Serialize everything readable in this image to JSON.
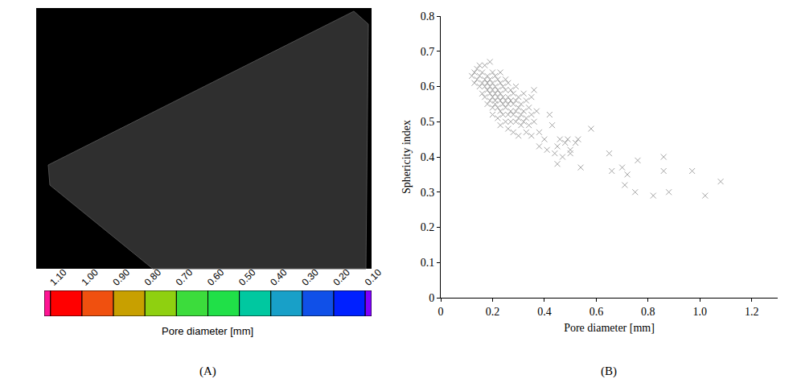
{
  "chart_data": [
    {
      "type": "colorbar",
      "panel_label": "(A)",
      "xlabel": "Pore diameter [mm]",
      "bins": [
        1.12,
        1.1,
        1.0,
        0.9,
        0.8,
        0.7,
        0.6,
        0.5,
        0.4,
        0.3,
        0.2,
        0.1,
        0.08
      ],
      "colors": [
        "#ff1493",
        "#ff0000",
        "#f0500f",
        "#c8a000",
        "#8fd010",
        "#3cdc3c",
        "#20e048",
        "#00c8a0",
        "#18a0c8",
        "#1050e8",
        "#0020ff",
        "#8000ff"
      ],
      "xlim": [
        1.12,
        0.08
      ],
      "xticks": [
        {
          "value": 1.1,
          "label": "1.10"
        },
        {
          "value": 1.0,
          "label": "1.00"
        },
        {
          "value": 0.9,
          "label": "0.90"
        },
        {
          "value": 0.8,
          "label": "0.80"
        },
        {
          "value": 0.7,
          "label": "0.70"
        },
        {
          "value": 0.6,
          "label": "0.60"
        },
        {
          "value": 0.5,
          "label": "0.50"
        },
        {
          "value": 0.4,
          "label": "0.40"
        },
        {
          "value": 0.3,
          "label": "0.30"
        },
        {
          "value": 0.2,
          "label": "0.20"
        },
        {
          "value": 0.1,
          "label": "0.10"
        }
      ]
    },
    {
      "type": "scatter",
      "panel_label": "(B)",
      "xlabel": "Pore diameter [mm]",
      "ylabel": "Sphericity index",
      "color": "#a6a6a6",
      "marker": "x",
      "grid": false,
      "xlim": [
        0,
        1.3
      ],
      "xticks": [
        0,
        0.2,
        0.4,
        0.6,
        0.8,
        {
          "value": 1,
          "label": "1.0"
        },
        1.2
      ],
      "ylim": [
        0,
        0.8
      ],
      "yticks": [
        0,
        0.1,
        0.2,
        0.3,
        0.4,
        0.5,
        0.6,
        0.7,
        0.8
      ],
      "x": [
        0.12,
        0.13,
        0.13,
        0.14,
        0.14,
        0.15,
        0.15,
        0.15,
        0.16,
        0.16,
        0.16,
        0.17,
        0.17,
        0.17,
        0.17,
        0.18,
        0.18,
        0.18,
        0.18,
        0.19,
        0.19,
        0.19,
        0.19,
        0.19,
        0.2,
        0.2,
        0.2,
        0.2,
        0.2,
        0.2,
        0.21,
        0.21,
        0.21,
        0.21,
        0.21,
        0.22,
        0.22,
        0.22,
        0.22,
        0.22,
        0.23,
        0.23,
        0.23,
        0.23,
        0.23,
        0.23,
        0.24,
        0.24,
        0.24,
        0.24,
        0.25,
        0.25,
        0.25,
        0.25,
        0.25,
        0.26,
        0.26,
        0.26,
        0.26,
        0.26,
        0.27,
        0.27,
        0.27,
        0.27,
        0.28,
        0.28,
        0.28,
        0.28,
        0.29,
        0.29,
        0.29,
        0.29,
        0.3,
        0.3,
        0.3,
        0.3,
        0.31,
        0.31,
        0.31,
        0.32,
        0.32,
        0.32,
        0.33,
        0.33,
        0.33,
        0.34,
        0.34,
        0.35,
        0.35,
        0.35,
        0.36,
        0.37,
        0.36,
        0.38,
        0.38,
        0.4,
        0.41,
        0.42,
        0.43,
        0.44,
        0.45,
        0.45,
        0.46,
        0.47,
        0.48,
        0.49,
        0.5,
        0.5,
        0.52,
        0.53,
        0.54,
        0.58,
        0.65,
        0.66,
        0.7,
        0.71,
        0.72,
        0.75,
        0.76,
        0.82,
        0.86,
        0.86,
        0.88,
        0.97,
        1.02,
        1.08
      ],
      "values": [
        0.63,
        0.64,
        0.61,
        0.62,
        0.65,
        0.66,
        0.6,
        0.63,
        0.61,
        0.64,
        0.58,
        0.62,
        0.6,
        0.66,
        0.57,
        0.63,
        0.59,
        0.61,
        0.55,
        0.67,
        0.62,
        0.58,
        0.6,
        0.56,
        0.64,
        0.61,
        0.59,
        0.57,
        0.54,
        0.52,
        0.63,
        0.6,
        0.58,
        0.56,
        0.55,
        0.62,
        0.59,
        0.57,
        0.54,
        0.51,
        0.64,
        0.61,
        0.58,
        0.56,
        0.53,
        0.49,
        0.6,
        0.57,
        0.55,
        0.52,
        0.62,
        0.59,
        0.56,
        0.54,
        0.5,
        0.61,
        0.57,
        0.55,
        0.52,
        0.48,
        0.59,
        0.56,
        0.53,
        0.5,
        0.58,
        0.55,
        0.52,
        0.47,
        0.6,
        0.56,
        0.53,
        0.5,
        0.57,
        0.54,
        0.51,
        0.46,
        0.55,
        0.52,
        0.49,
        0.58,
        0.53,
        0.5,
        0.56,
        0.51,
        0.47,
        0.54,
        0.49,
        0.57,
        0.52,
        0.46,
        0.59,
        0.53,
        0.5,
        0.47,
        0.43,
        0.45,
        0.42,
        0.52,
        0.49,
        0.41,
        0.43,
        0.38,
        0.45,
        0.4,
        0.44,
        0.45,
        0.42,
        0.41,
        0.44,
        0.45,
        0.37,
        0.48,
        0.41,
        0.36,
        0.37,
        0.32,
        0.35,
        0.3,
        0.39,
        0.29,
        0.4,
        0.36,
        0.3,
        0.36,
        0.29,
        0.33
      ]
    }
  ]
}
